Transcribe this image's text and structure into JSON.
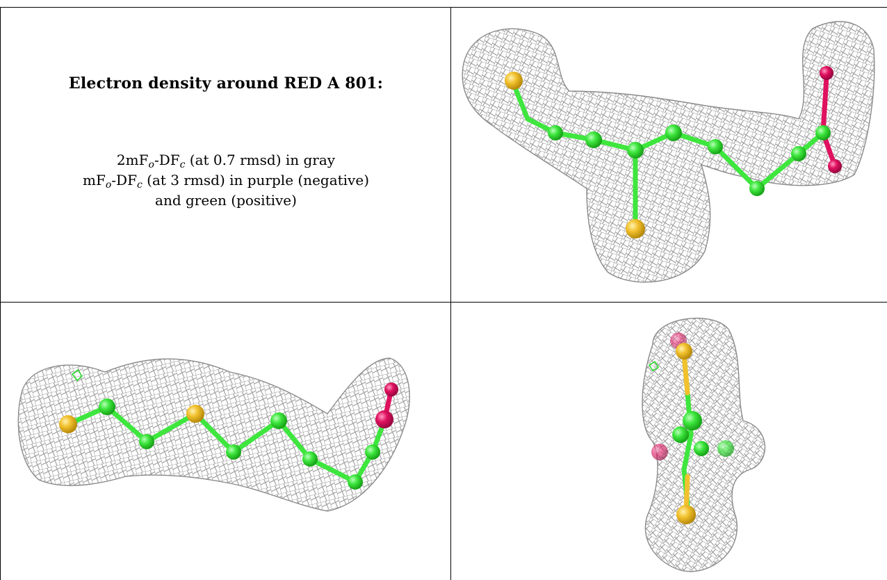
{
  "caption": {
    "title": "Electron density around RED A 801:",
    "line1": {
      "pre": "2mF",
      "sub1": "o",
      "mid": "-DF",
      "sub2": "c",
      "post": " (at 0.7 rmsd) in gray"
    },
    "line2": {
      "pre": "mF",
      "sub1": "o",
      "mid": "-DF",
      "sub2": "c",
      "post": " (at 3 rmsd) in purple (negative)"
    },
    "line3": "and green (positive)"
  },
  "colors": {
    "mesh": "#9a9a9a",
    "carbon": "#3ee63e",
    "sulfur": "#f2c12e",
    "oxygen": "#e0115f",
    "positive_density": "#22dd22"
  },
  "icons": [
    "electron-density-mesh-icon",
    "ligand-ball-and-stick-icon"
  ]
}
